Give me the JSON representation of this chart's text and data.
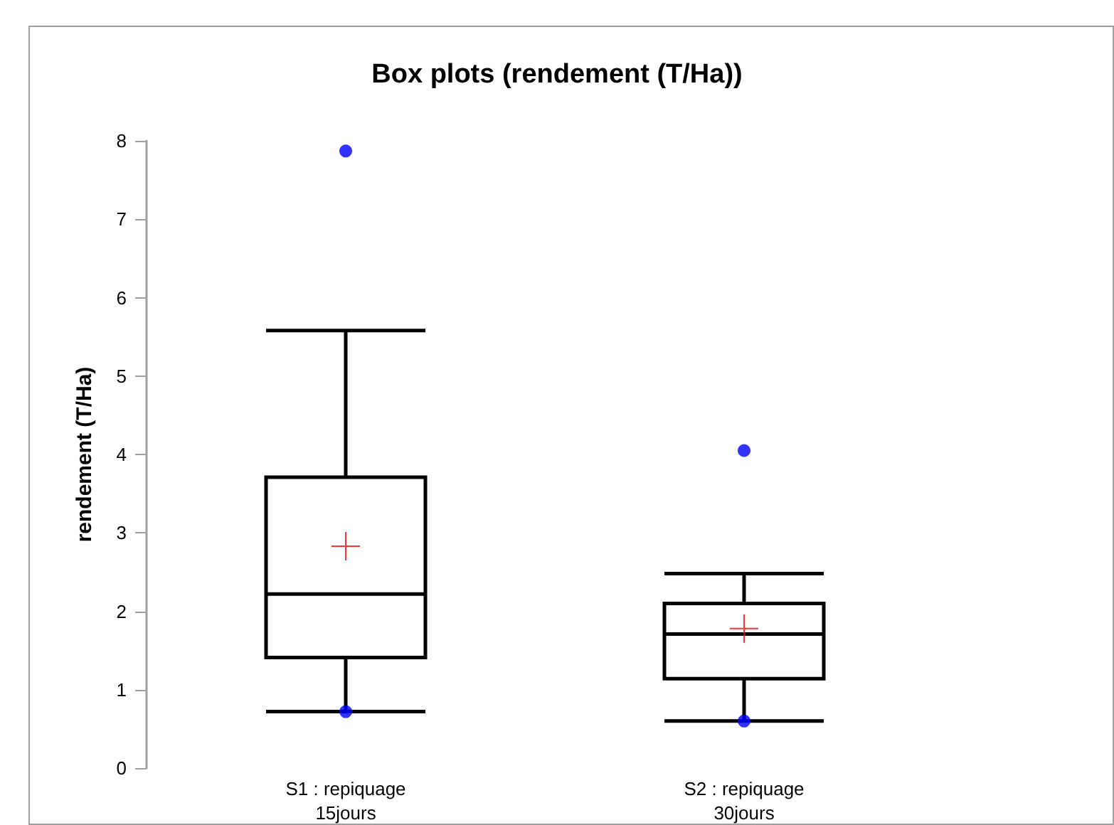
{
  "chart_data": {
    "type": "box",
    "title": "Box plots (rendement (T/Ha))",
    "ylabel": "rendement (T/Ha)",
    "categories": [
      "S1 : repiquage\n15jours",
      "S2 : repiquage\n30jours"
    ],
    "series": [
      {
        "color": "#000000",
        "boxes": [
          {
            "low": 0.72,
            "q1": 1.41,
            "median": 2.22,
            "q3": 3.71,
            "high": 5.58,
            "mean": 2.83,
            "outliers": [
              7.87,
              0.72
            ]
          },
          {
            "low": 0.6,
            "q1": 1.14,
            "median": 1.71,
            "q3": 2.1,
            "high": 2.48,
            "mean": 1.78,
            "outliers": [
              4.05,
              0.6
            ]
          }
        ]
      }
    ],
    "ylim": [
      0,
      8
    ],
    "yticks": [
      0,
      1,
      2,
      3,
      4,
      5,
      6,
      7,
      8
    ]
  }
}
